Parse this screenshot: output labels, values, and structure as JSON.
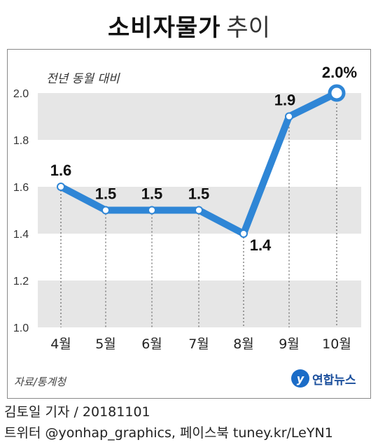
{
  "title": {
    "main": "소비자물가",
    "sub": "추이"
  },
  "unit_label": "전년 동월 대비",
  "source_label": "자료/통계청",
  "logo_text": "연합뉴스",
  "credit_line1": "김토일 기자 / 20181101",
  "credit_line2": "트위터 @yonhap_graphics, 페이스북 tuney.kr/LeYN1",
  "colors": {
    "line": "#2f86d6",
    "band": "#e6e6e6",
    "marker_fill": "#ffffff"
  },
  "chart_data": {
    "type": "line",
    "categories": [
      "4월",
      "5월",
      "6월",
      "7월",
      "8월",
      "9월",
      "10월"
    ],
    "values": [
      1.6,
      1.5,
      1.5,
      1.5,
      1.4,
      1.9,
      2.0
    ],
    "data_labels": [
      "1.6",
      "1.5",
      "1.5",
      "1.5",
      "1.4",
      "1.9",
      "2.0%"
    ],
    "yticks": [
      "1.0",
      "1.2",
      "1.4",
      "1.6",
      "1.8",
      "2.0"
    ],
    "ylim": [
      1.0,
      2.0
    ],
    "ylabel": "전년 동월 대비",
    "grid": "alternating bands"
  }
}
